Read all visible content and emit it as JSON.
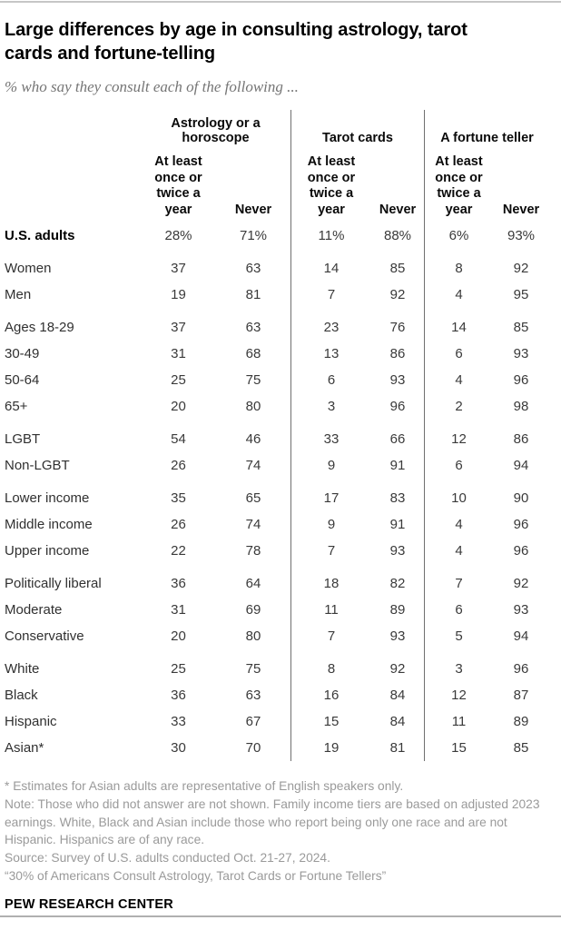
{
  "colors": {
    "background": "#ffffff",
    "title_text": "#000000",
    "subtitle_gray": "#757575",
    "body_text": "#3a3a3a",
    "notes_gray": "#9a9a9a",
    "column_divider_line": "#6f6f6f",
    "top_rule": "#c6c6c6",
    "bottom_rule": "#b0b0b0"
  },
  "header": {
    "title": "Large differences by age in consulting astrology, tarot\ncards and fortune-telling",
    "subtitle": "% who say they consult each of the following ..."
  },
  "chart_data": {
    "type": "table",
    "title": "Large differences by age in consulting astrology, tarot cards and fortune-telling",
    "subtitle": "% who say they consult each of the following ...",
    "column_groups": [
      "Astrology or a\nhoroscope",
      "Tarot cards",
      "A fortune teller"
    ],
    "sub_columns_per_group": [
      "At least once or twice a year",
      "Never"
    ],
    "frequency_header_lines": "At least\nonce or\ntwice a\nyear",
    "never_header": "Never",
    "value_unit": "%",
    "rows": [
      {
        "label": "U.S. adults",
        "bold": true,
        "percent_signs": true,
        "gap_before": false,
        "values": [
          28,
          71,
          11,
          88,
          6,
          93
        ]
      },
      {
        "label": "Women",
        "gap_before": true,
        "values": [
          37,
          63,
          14,
          85,
          8,
          92
        ]
      },
      {
        "label": "Men",
        "gap_before": false,
        "values": [
          19,
          81,
          7,
          92,
          4,
          95
        ]
      },
      {
        "label": "Ages 18-29",
        "gap_before": true,
        "values": [
          37,
          63,
          23,
          76,
          14,
          85
        ]
      },
      {
        "label": "30-49",
        "gap_before": false,
        "values": [
          31,
          68,
          13,
          86,
          6,
          93
        ]
      },
      {
        "label": "50-64",
        "gap_before": false,
        "values": [
          25,
          75,
          6,
          93,
          4,
          96
        ]
      },
      {
        "label": "65+",
        "gap_before": false,
        "values": [
          20,
          80,
          3,
          96,
          2,
          98
        ]
      },
      {
        "label": "LGBT",
        "gap_before": true,
        "values": [
          54,
          46,
          33,
          66,
          12,
          86
        ]
      },
      {
        "label": "Non-LGBT",
        "gap_before": false,
        "values": [
          26,
          74,
          9,
          91,
          6,
          94
        ]
      },
      {
        "label": "Lower income",
        "gap_before": true,
        "values": [
          35,
          65,
          17,
          83,
          10,
          90
        ]
      },
      {
        "label": "Middle income",
        "gap_before": false,
        "values": [
          26,
          74,
          9,
          91,
          4,
          96
        ]
      },
      {
        "label": "Upper income",
        "gap_before": false,
        "values": [
          22,
          78,
          7,
          93,
          4,
          96
        ]
      },
      {
        "label": "Politically liberal",
        "gap_before": true,
        "values": [
          36,
          64,
          18,
          82,
          7,
          92
        ]
      },
      {
        "label": "Moderate",
        "gap_before": false,
        "values": [
          31,
          69,
          11,
          89,
          6,
          93
        ]
      },
      {
        "label": "Conservative",
        "gap_before": false,
        "values": [
          20,
          80,
          7,
          93,
          5,
          94
        ]
      },
      {
        "label": "White",
        "gap_before": true,
        "values": [
          25,
          75,
          8,
          92,
          3,
          96
        ]
      },
      {
        "label": "Black",
        "gap_before": false,
        "values": [
          36,
          63,
          16,
          84,
          12,
          87
        ]
      },
      {
        "label": "Hispanic",
        "gap_before": false,
        "values": [
          33,
          67,
          15,
          84,
          11,
          89
        ]
      },
      {
        "label": "Asian*",
        "gap_before": false,
        "values": [
          30,
          70,
          19,
          81,
          15,
          85
        ]
      }
    ]
  },
  "footer": {
    "notes": [
      "* Estimates for Asian adults are representative of English speakers only.",
      "Note: Those who did not answer are not shown. Family income tiers are based on adjusted 2023 earnings. White, Black and Asian include those who report being only one race and are not Hispanic. Hispanics are of any race.",
      "Source: Survey of U.S. adults conducted Oct. 21-27, 2024.",
      "“30% of Americans Consult Astrology, Tarot Cards or Fortune Tellers”"
    ],
    "brand": "PEW RESEARCH CENTER"
  }
}
